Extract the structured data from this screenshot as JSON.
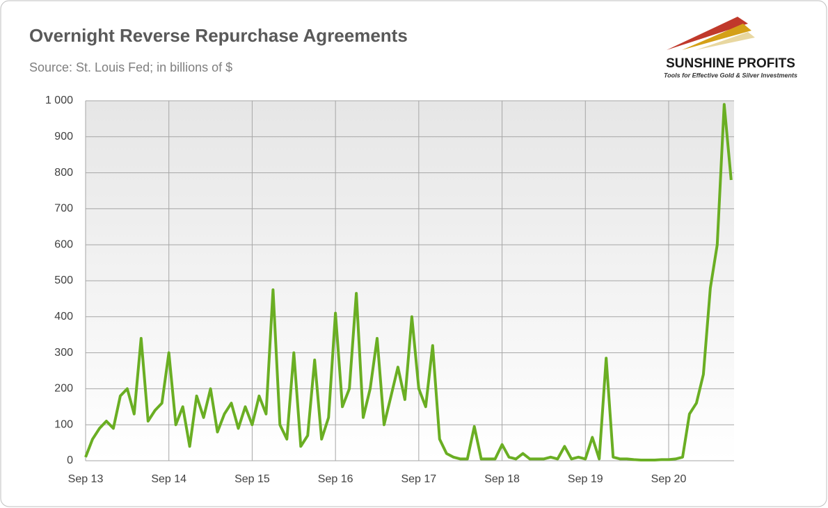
{
  "chart_data": {
    "type": "line",
    "title": "Overnight Reverse Repurchase Agreements",
    "subtitle": "Source: St. Louis Fed; in billions of $",
    "logo": {
      "name": "SUNSHINE PROFITS",
      "tagline": "Tools for Effective Gold & Silver Investments"
    },
    "categories": [
      "Sep 13",
      null,
      null,
      null,
      null,
      null,
      null,
      null,
      null,
      null,
      null,
      null,
      "Sep 14",
      null,
      null,
      null,
      null,
      null,
      null,
      null,
      null,
      null,
      null,
      null,
      "Sep 15",
      null,
      null,
      null,
      null,
      null,
      null,
      null,
      null,
      null,
      null,
      null,
      "Sep 16",
      null,
      null,
      null,
      null,
      null,
      null,
      null,
      null,
      null,
      null,
      null,
      "Sep 17",
      null,
      null,
      null,
      null,
      null,
      null,
      null,
      null,
      null,
      null,
      null,
      "Sep 18",
      null,
      null,
      null,
      null,
      null,
      null,
      null,
      null,
      null,
      null,
      null,
      "Sep 19",
      null,
      null,
      null,
      null,
      null,
      null,
      null,
      null,
      null,
      null,
      null,
      "Sep 20",
      null,
      null,
      null,
      null,
      null,
      null,
      null,
      null,
      null
    ],
    "values": [
      10,
      60,
      90,
      110,
      90,
      180,
      200,
      130,
      340,
      110,
      140,
      160,
      300,
      100,
      150,
      40,
      180,
      120,
      200,
      80,
      130,
      160,
      90,
      150,
      100,
      180,
      130,
      475,
      100,
      60,
      300,
      40,
      70,
      280,
      60,
      120,
      410,
      150,
      200,
      465,
      120,
      200,
      340,
      100,
      180,
      260,
      170,
      400,
      200,
      150,
      320,
      60,
      20,
      10,
      5,
      5,
      95,
      5,
      5,
      5,
      45,
      10,
      5,
      20,
      5,
      5,
      5,
      10,
      5,
      40,
      5,
      10,
      5,
      65,
      5,
      285,
      10,
      5,
      5,
      3,
      2,
      2,
      2,
      3,
      3,
      5,
      10,
      130,
      160,
      240,
      480,
      600,
      990,
      780
    ],
    "color": "#6aae23",
    "ylim": [
      0,
      1000
    ],
    "yticks": [
      0,
      100,
      200,
      300,
      400,
      500,
      600,
      700,
      800,
      900,
      {
        "value": 1000,
        "label": "1 000"
      }
    ],
    "grid": true
  }
}
